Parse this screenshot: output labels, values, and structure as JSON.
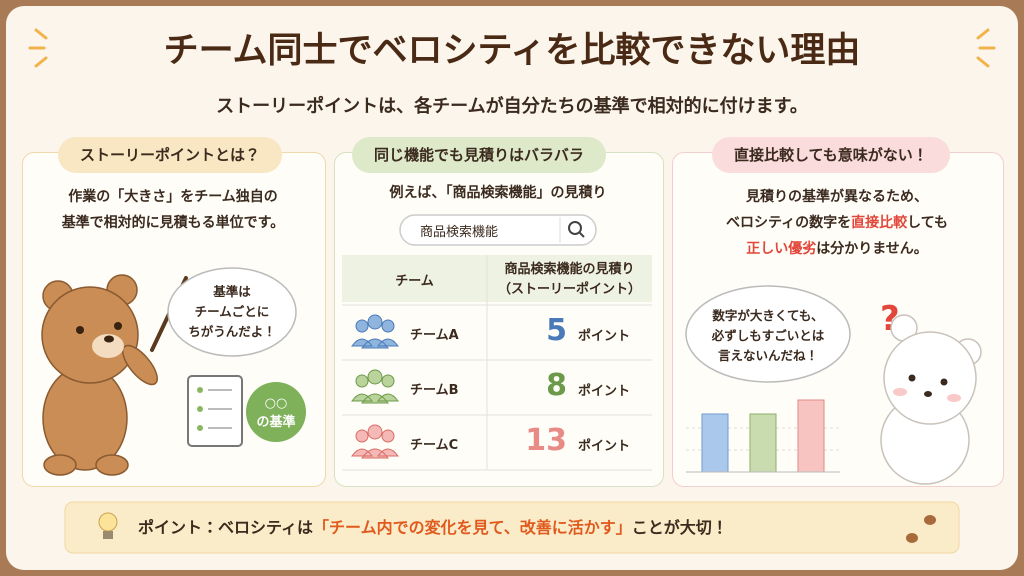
{
  "header": {
    "title": "チーム同士でベロシティを比較できない理由",
    "subtitle": "ストーリーポイントは、各チームが自分たちの基準で相対的に付けます。"
  },
  "panels": [
    {
      "heading": "ストーリーポイントとは？",
      "body": [
        "作業の「大きさ」をチーム独自の",
        "基準で相対的に見積もる単位です。"
      ],
      "speech": [
        "基準は",
        "チームごとに",
        "ちがうんだよ！"
      ],
      "badge": [
        "○○",
        "の基準"
      ]
    },
    {
      "heading": "同じ機能でも見積りはバラバラ",
      "body": [
        "例えば、「商品検索機能」の見積り"
      ],
      "search": "商品検索機能",
      "table": {
        "header": [
          "チーム",
          [
            "商品検索機能の見積り",
            "（ストーリーポイント）"
          ]
        ],
        "rows": [
          [
            "チームA",
            "5",
            "ポイント"
          ],
          [
            "チームB",
            "8",
            "ポイント"
          ],
          [
            "チームC",
            "13",
            "ポイント"
          ]
        ]
      }
    },
    {
      "heading": "直接比較しても意味がない！",
      "body": [
        [
          "見積りの基準が異なるため、"
        ],
        [
          "ベロシティの数字を",
          "直接比較",
          "しても"
        ],
        [
          "正しい優劣",
          "は分かりません。"
        ]
      ],
      "speech": [
        "数字が大きくても、",
        "必ずしもすごいとは",
        "言えないんだね！"
      ]
    }
  ],
  "footer": [
    "ポイント：ベロシティは",
    "「チーム内での変化を見て、改善に活かす」",
    "ことが大切！"
  ]
}
